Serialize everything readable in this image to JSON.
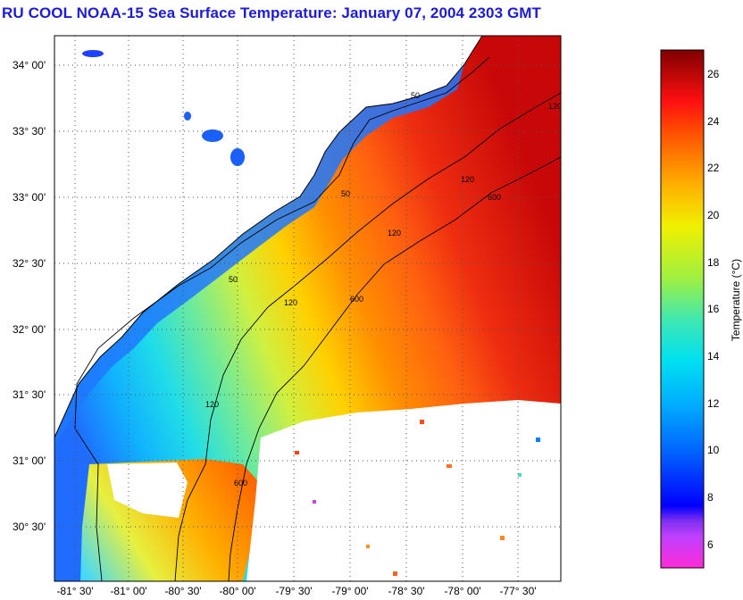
{
  "title": "RU COOL  NOAA-15  Sea Surface Temperature:  January 07, 2004 2303 GMT",
  "map": {
    "lat_labels": [
      "34° 00'",
      "33° 30'",
      "33° 00'",
      "32° 30'",
      "32° 00'",
      "31° 30'",
      "31° 00'",
      "30° 30'"
    ],
    "lon_labels": [
      "-81° 30'",
      "-81° 00'",
      "-80° 30'",
      "-80° 00'",
      "-79° 30'",
      "-79° 00'",
      "-78° 30'",
      "-78° 00'",
      "-77° 30'"
    ],
    "isobath_labels": [
      "50",
      "120",
      "600"
    ],
    "colors": {
      "land": "#ffffff",
      "cloud": "#ffffff",
      "grid": "#555555",
      "contour": "#000000"
    }
  },
  "colorbar": {
    "label": "Temperature (°C)",
    "ticks": [
      "26",
      "24",
      "22",
      "20",
      "18",
      "16",
      "14",
      "12",
      "10",
      "8",
      "6"
    ],
    "range": [
      5,
      27
    ],
    "stops": [
      "#ff2bd6",
      "#a020f0",
      "#0000ff",
      "#0080ff",
      "#00d0ff",
      "#40e0c0",
      "#b0f030",
      "#f0f000",
      "#ff9000",
      "#ff2000",
      "#c00000",
      "#800000"
    ]
  }
}
